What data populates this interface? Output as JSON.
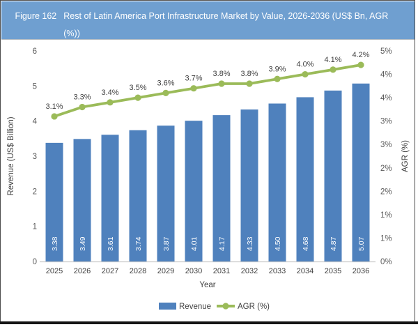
{
  "figure": {
    "label": "Figure 162",
    "title": "Rest of Latin America Port Infrastructure Market by Value, 2026-2036 (US$ Bn, AGR (%))"
  },
  "colors": {
    "header_bg": "#6F9FD0",
    "header_text": "#FFFFFF",
    "bar_fill": "#4F81BD",
    "line_stroke": "#9BBB59",
    "bar_label_text": "#FFFFFF",
    "axis_text": "#595959",
    "data_label_text": "#3F3F3F",
    "axis_line": "#C9C9C9",
    "frame_border": "#4B4B4B",
    "bottom_rule": "#151515"
  },
  "chart_data": {
    "type": "bar",
    "subtype": "combo-bar-line-dual-axis",
    "title": "Rest of Latin America Port Infrastructure Market by Value, 2026-2036 (US$ Bn, AGR (%))",
    "categories": [
      "2025",
      "2026",
      "2027",
      "2028",
      "2029",
      "2030",
      "2031",
      "2032",
      "2033",
      "2034",
      "2035",
      "2036"
    ],
    "series": [
      {
        "name": "Revenue",
        "type": "bar",
        "axis": "left",
        "values": [
          3.38,
          3.49,
          3.61,
          3.74,
          3.87,
          4.01,
          4.17,
          4.33,
          4.5,
          4.68,
          4.87,
          5.07
        ],
        "labels": [
          "3.38",
          "3.49",
          "3.61",
          "3.74",
          "3.87",
          "4.01",
          "4.17",
          "4.33",
          "4.50",
          "4.68",
          "4.87",
          "5.07"
        ]
      },
      {
        "name": "AGR (%)",
        "type": "line",
        "axis": "right",
        "values": [
          3.1,
          3.3,
          3.4,
          3.5,
          3.6,
          3.7,
          3.8,
          3.8,
          3.9,
          4.0,
          4.1,
          4.2
        ],
        "labels": [
          "3.1%",
          "3.3%",
          "3.4%",
          "3.5%",
          "3.6%",
          "3.7%",
          "3.8%",
          "3.8%",
          "3.9%",
          "4.0%",
          "4.1%",
          "4.2%"
        ]
      }
    ],
    "xlabel": "Year",
    "ylabel": "Revenue (US$ Billion)",
    "y2label": "AGR (%)",
    "ylim": [
      0,
      6
    ],
    "y2lim": [
      0,
      4.5
    ],
    "left_tick_labels_bottom_to_top": [
      "0",
      "1",
      "2",
      "3",
      "4",
      "5",
      "6"
    ],
    "right_tick_labels_bottom_to_top": [
      "0%",
      "1%",
      "1%",
      "2%",
      "2%",
      "3%",
      "3%",
      "4%",
      "4%",
      "5%"
    ],
    "grid": "off",
    "legend_position": "bottom-center",
    "legend": [
      {
        "label": "Revenue"
      },
      {
        "label": "AGR (%)"
      }
    ]
  }
}
